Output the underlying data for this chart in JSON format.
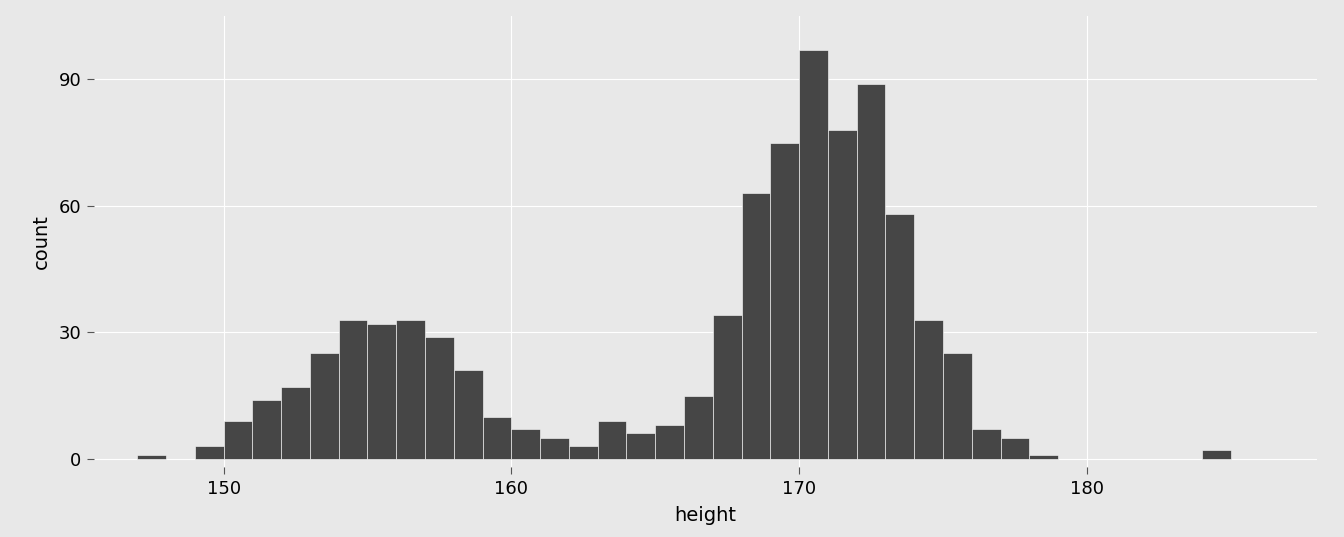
{
  "bin_left_edges": [
    147,
    148,
    149,
    150,
    151,
    152,
    153,
    154,
    155,
    156,
    157,
    158,
    159,
    160,
    161,
    162,
    163,
    164,
    165,
    166,
    167,
    168,
    169,
    170,
    171,
    172,
    173,
    174,
    175,
    176,
    177,
    178,
    184
  ],
  "counts": [
    1,
    0,
    3,
    9,
    14,
    17,
    25,
    33,
    32,
    33,
    29,
    21,
    10,
    7,
    5,
    3,
    9,
    6,
    8,
    15,
    34,
    63,
    75,
    97,
    78,
    89,
    58,
    33,
    25,
    7,
    5,
    1,
    2
  ],
  "bin_width": 1,
  "bar_color": "#464646",
  "bar_edge_color": "#ffffff",
  "background_color": "#ebebeb",
  "panel_background": "#e8e8e8",
  "grid_color": "#ffffff",
  "xlabel": "height",
  "ylabel": "count",
  "xlim": [
    145.5,
    188
  ],
  "ylim": [
    -2,
    105
  ],
  "xticks": [
    150,
    160,
    170,
    180
  ],
  "yticks": [
    0,
    30,
    60,
    90
  ],
  "axis_fontsize": 14,
  "tick_fontsize": 13,
  "font_family": "DejaVu Sans"
}
